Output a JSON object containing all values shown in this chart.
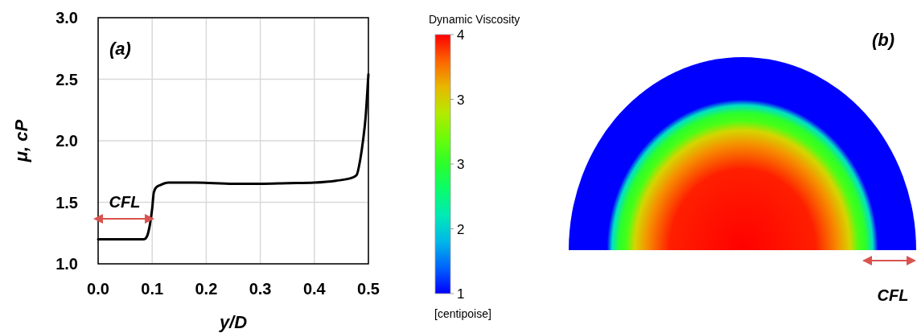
{
  "chart_data": [
    {
      "type": "line",
      "title": "(a)",
      "xlabel": "y/D",
      "ylabel": "μ, cP",
      "xlim": [
        0,
        0.5
      ],
      "ylim": [
        1,
        3
      ],
      "xticks": [
        {
          "value": 0,
          "label": "0.0"
        },
        0.1,
        0.2,
        0.3,
        0.4,
        0.5
      ],
      "yticks": [
        {
          "value": 1,
          "label": "1.0"
        },
        1.5,
        {
          "value": 2,
          "label": "2.0"
        },
        2.5,
        {
          "value": 3,
          "label": "3.0"
        }
      ],
      "grid": true,
      "line_style": "solid",
      "color": "#000000",
      "x": [
        0,
        0.085,
        0.09,
        0.095,
        0.1,
        0.103,
        0.107,
        0.115,
        0.13,
        0.18,
        0.25,
        0.3,
        0.35,
        0.4,
        0.44,
        0.47,
        0.478,
        0.485,
        0.49,
        0.495,
        0.498,
        0.5
      ],
      "values": [
        1.2,
        1.2,
        1.22,
        1.3,
        1.45,
        1.58,
        1.62,
        1.64,
        1.66,
        1.66,
        1.65,
        1.65,
        1.655,
        1.66,
        1.675,
        1.7,
        1.72,
        1.85,
        2.0,
        2.2,
        2.4,
        2.54
      ],
      "annotations": [
        "CFL"
      ]
    },
    {
      "type": "other",
      "title": "(b)",
      "clabel": "Dynamic Viscosity",
      "annotations": [
        "4",
        "3",
        "3",
        "2",
        "1",
        "[centipoise]",
        "CFL"
      ]
    }
  ]
}
